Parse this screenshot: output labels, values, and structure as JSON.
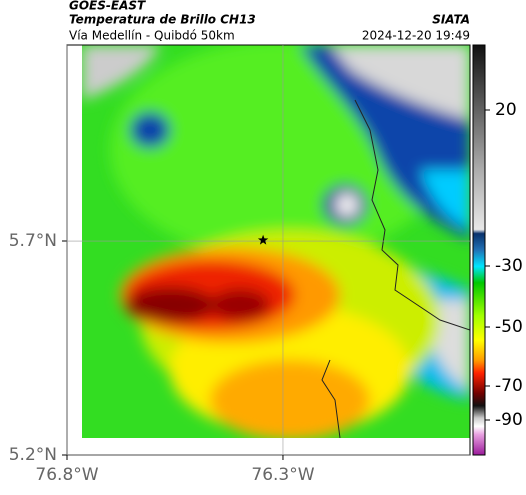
{
  "header": {
    "title": "GOES-EAST",
    "subtitle": "Temperatura de Brillo CH13",
    "route": "Vía Medellín - Quibdó 50km",
    "source": "SIATA",
    "timestamp": "2024-12-20 19:49"
  },
  "map": {
    "xlim": [
      -76.8,
      -75.867
    ],
    "ylim": [
      5.2,
      6.158
    ],
    "lat_ticks": [
      {
        "value": 5.7,
        "label": "5.7°N"
      },
      {
        "value": 5.2,
        "label": "5.2°N"
      }
    ],
    "lon_ticks": [
      {
        "value": -76.8,
        "label": "76.8°W"
      },
      {
        "value": -76.3,
        "label": "76.3°W"
      }
    ],
    "marker": {
      "lon": -76.346,
      "lat": 5.702
    }
  },
  "colorbar": {
    "ticks": [
      20,
      -30,
      -50,
      -70,
      -90
    ]
  }
}
